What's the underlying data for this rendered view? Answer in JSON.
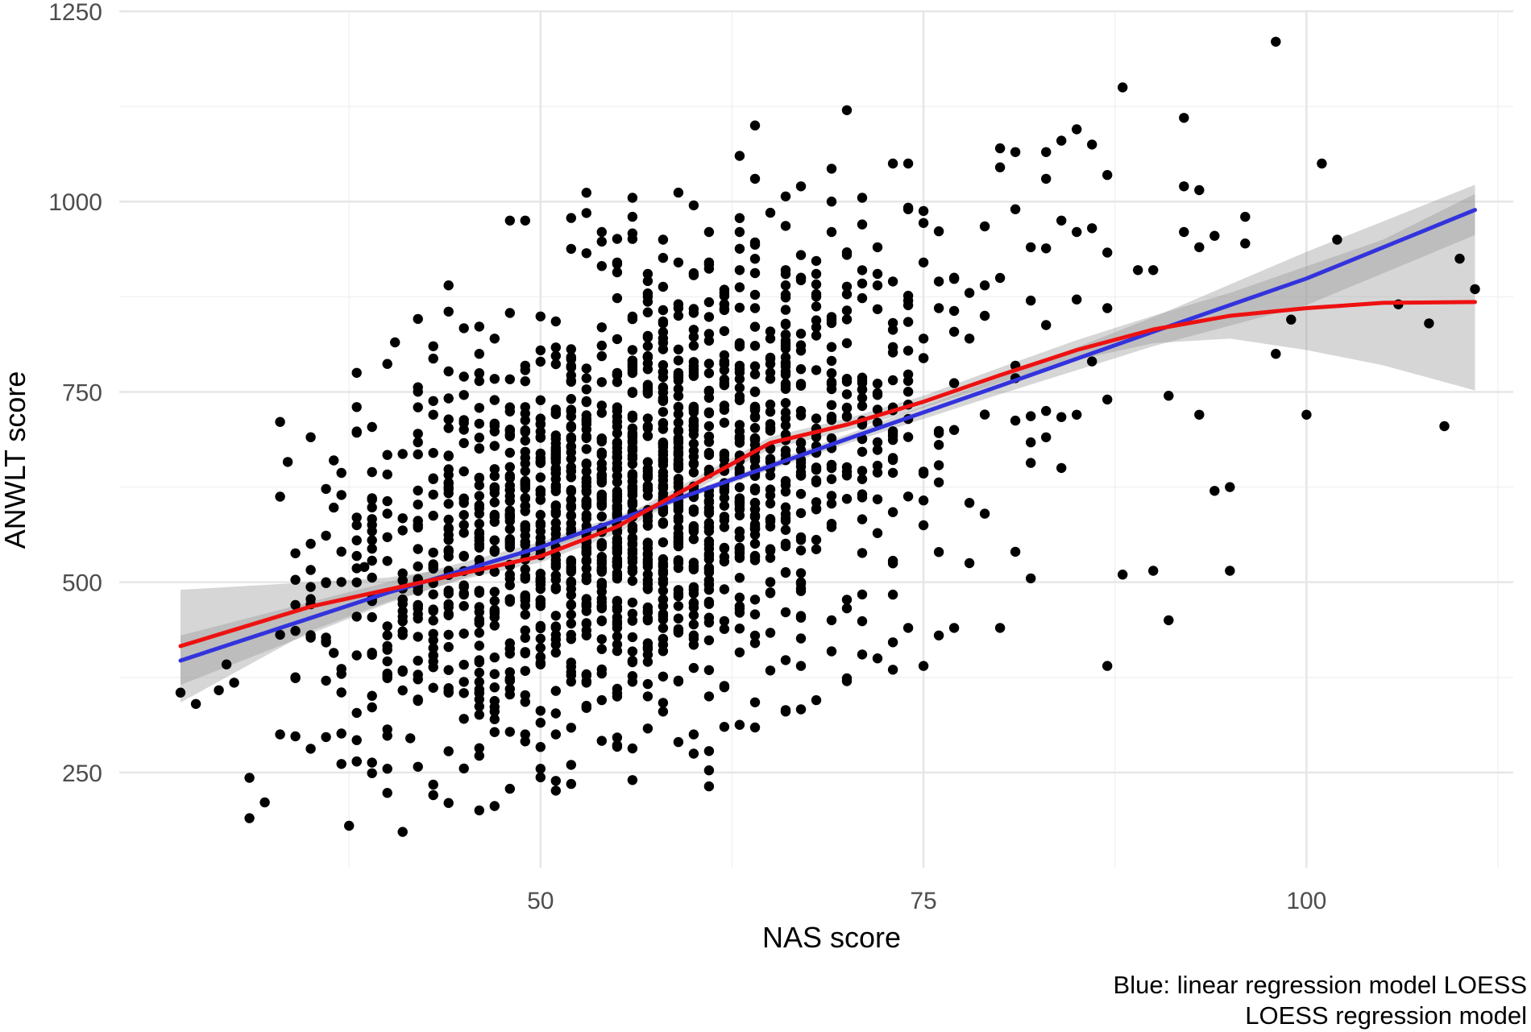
{
  "chart_data": {
    "type": "scatter",
    "title": "",
    "xlabel": "NAS score",
    "ylabel": "ANWLT score",
    "xlim": [
      22.5,
      113.5
    ],
    "ylim": [
      125,
      1250
    ],
    "xticks": [
      50,
      75,
      100
    ],
    "xtick_labels": [
      "50",
      "75",
      "100"
    ],
    "x_minor_gridlines": [
      37.5,
      62.5,
      87.5,
      112.5
    ],
    "yticks": [
      250,
      500,
      750,
      1000,
      1250
    ],
    "ytick_labels": [
      "250",
      "500",
      "750",
      "1000",
      "1250"
    ],
    "y_minor_gridlines": [
      375,
      625,
      875,
      1125
    ],
    "grid": true,
    "legend": "none",
    "caption": [
      "Blue: linear regression model LOESS",
      "LOESS regression model"
    ],
    "colors": {
      "points": "#000000",
      "linear": "#3333dd",
      "loess": "#ee1111",
      "band": "#999999",
      "grid_major": "#e6e6e6",
      "grid_minor": "#f2f2f2"
    },
    "points_count": 1800,
    "points": [
      [
        26.5,
        355
      ],
      [
        27.5,
        340
      ],
      [
        29,
        358
      ],
      [
        29.5,
        392
      ],
      [
        30,
        368
      ],
      [
        31,
        243
      ],
      [
        31,
        190
      ],
      [
        33,
        300
      ],
      [
        33.5,
        658
      ],
      [
        34,
        374
      ],
      [
        34,
        436
      ],
      [
        34,
        470
      ],
      [
        34,
        538
      ],
      [
        35,
        516
      ],
      [
        35,
        471
      ],
      [
        36,
        500
      ],
      [
        36.5,
        407
      ],
      [
        36.5,
        660
      ],
      [
        36.5,
        598
      ],
      [
        37.5,
        180
      ],
      [
        38,
        775
      ],
      [
        38,
        730
      ],
      [
        38,
        698
      ],
      [
        38,
        585
      ],
      [
        38,
        555
      ],
      [
        38.5,
        520
      ],
      [
        39,
        263
      ],
      [
        40,
        255
      ],
      [
        40,
        380
      ],
      [
        40,
        590
      ],
      [
        40.5,
        815
      ],
      [
        41,
        172
      ],
      [
        41.5,
        295
      ],
      [
        42,
        470
      ],
      [
        42,
        695
      ],
      [
        43,
        810
      ],
      [
        43,
        738
      ],
      [
        43,
        720
      ],
      [
        44,
        890
      ],
      [
        44,
        210
      ],
      [
        44,
        485
      ],
      [
        44,
        540
      ],
      [
        45,
        770
      ],
      [
        45,
        610
      ],
      [
        46,
        800
      ],
      [
        46,
        676
      ],
      [
        47,
        820
      ],
      [
        48,
        975
      ],
      [
        49,
        975
      ],
      [
        49,
        730
      ],
      [
        48,
        640
      ],
      [
        48,
        590
      ],
      [
        47,
        540
      ],
      [
        46,
        355
      ],
      [
        47,
        320
      ],
      [
        49,
        300
      ],
      [
        50,
        255
      ],
      [
        51,
        239
      ],
      [
        52,
        260
      ],
      [
        53,
        985
      ],
      [
        54,
        960
      ],
      [
        54,
        345
      ],
      [
        55,
        600
      ],
      [
        55,
        920
      ],
      [
        56,
        1005
      ],
      [
        56,
        980
      ],
      [
        57,
        875
      ],
      [
        57,
        905
      ],
      [
        58,
        888
      ],
      [
        58,
        840
      ],
      [
        58,
        950
      ],
      [
        59,
        920
      ],
      [
        59,
        860
      ],
      [
        60,
        995
      ],
      [
        60,
        780
      ],
      [
        60,
        700
      ],
      [
        61,
        960
      ],
      [
        61,
        920
      ],
      [
        62,
        880
      ],
      [
        62,
        830
      ],
      [
        63,
        960
      ],
      [
        63,
        910
      ],
      [
        63,
        1060
      ],
      [
        64,
        1100
      ],
      [
        64,
        1030
      ],
      [
        64,
        860
      ],
      [
        65,
        795
      ],
      [
        65,
        820
      ],
      [
        66,
        910
      ],
      [
        66,
        890
      ],
      [
        67,
        1020
      ],
      [
        67,
        900
      ],
      [
        68,
        905
      ],
      [
        68,
        875
      ],
      [
        69,
        960
      ],
      [
        69,
        1000
      ],
      [
        70,
        1120
      ],
      [
        70,
        930
      ],
      [
        71,
        1005
      ],
      [
        71,
        970
      ],
      [
        72,
        940
      ],
      [
        72,
        905
      ],
      [
        73,
        895
      ],
      [
        73,
        1050
      ],
      [
        74,
        1050
      ],
      [
        74,
        990
      ],
      [
        75,
        920
      ],
      [
        75,
        820
      ],
      [
        76,
        860
      ],
      [
        76,
        895
      ],
      [
        77,
        900
      ],
      [
        77,
        700
      ],
      [
        78,
        880
      ],
      [
        78,
        820
      ],
      [
        79,
        890
      ],
      [
        79,
        850
      ],
      [
        80,
        1070
      ],
      [
        80,
        1045
      ],
      [
        81,
        1065
      ],
      [
        81,
        990
      ],
      [
        82,
        870
      ],
      [
        82,
        940
      ],
      [
        83,
        1065
      ],
      [
        83,
        1030
      ],
      [
        84,
        1080
      ],
      [
        84,
        975
      ],
      [
        85,
        1095
      ],
      [
        85,
        960
      ],
      [
        86,
        1075
      ],
      [
        86,
        965
      ],
      [
        87,
        1035
      ],
      [
        87,
        860
      ],
      [
        88,
        1150
      ],
      [
        89,
        910
      ],
      [
        90,
        910
      ],
      [
        91,
        450
      ],
      [
        92,
        1110
      ],
      [
        92,
        1020
      ],
      [
        92,
        960
      ],
      [
        93,
        1015
      ],
      [
        93,
        940
      ],
      [
        93,
        720
      ],
      [
        94,
        955
      ],
      [
        94,
        620
      ],
      [
        95,
        625
      ],
      [
        95,
        515
      ],
      [
        96,
        980
      ],
      [
        96,
        945
      ],
      [
        98,
        1210
      ],
      [
        98,
        800
      ],
      [
        99,
        845
      ],
      [
        100,
        720
      ],
      [
        101,
        1050
      ],
      [
        102,
        950
      ],
      [
        106,
        865
      ],
      [
        108,
        840
      ],
      [
        109,
        705
      ],
      [
        110,
        925
      ],
      [
        111,
        885
      ],
      [
        91,
        745
      ],
      [
        90,
        515
      ],
      [
        88,
        510
      ],
      [
        87,
        390
      ],
      [
        87,
        740
      ],
      [
        86,
        790
      ],
      [
        85,
        720
      ],
      [
        84,
        650
      ],
      [
        83,
        725
      ],
      [
        82,
        505
      ],
      [
        81,
        540
      ],
      [
        80,
        440
      ],
      [
        79,
        590
      ],
      [
        78,
        525
      ],
      [
        77,
        440
      ],
      [
        76,
        430
      ],
      [
        75,
        390
      ],
      [
        74,
        440
      ],
      [
        73,
        385
      ],
      [
        72,
        400
      ],
      [
        71,
        405
      ],
      [
        70,
        370
      ],
      [
        69,
        450
      ],
      [
        68,
        345
      ],
      [
        67,
        390
      ],
      [
        66,
        330
      ],
      [
        65,
        500
      ],
      [
        64,
        420
      ],
      [
        63,
        460
      ],
      [
        62,
        310
      ],
      [
        61,
        350
      ],
      [
        60,
        300
      ],
      [
        59,
        290
      ],
      [
        58,
        330
      ],
      [
        57,
        350
      ],
      [
        56,
        240
      ],
      [
        55,
        360
      ],
      [
        54,
        380
      ],
      [
        53,
        430
      ],
      [
        52,
        235
      ],
      [
        51,
        300
      ]
    ],
    "series": [
      {
        "name": "Blue: linear regression model LOESS",
        "x": [
          26.5,
          40,
          50,
          60,
          70,
          80,
          90,
          100,
          111
        ],
        "y": [
          397,
          486,
          546,
          617,
          688,
          758,
          829,
          899,
          989
        ],
        "band_upper": [
          430,
          500,
          553,
          621,
          694,
          769,
          848,
          934,
          1022
        ],
        "band_lower": [
          365,
          472,
          539,
          613,
          682,
          747,
          810,
          864,
          956
        ]
      },
      {
        "name": "LOESS regression model",
        "x": [
          26.5,
          35,
          40,
          45,
          50,
          55,
          60,
          65,
          70,
          75,
          80,
          85,
          90,
          95,
          100,
          105,
          111
        ],
        "y": [
          416,
          468,
          490,
          512,
          534,
          573,
          628,
          683,
          707,
          737,
          772,
          805,
          832,
          850,
          860,
          867,
          868
        ],
        "band_upper": [
          490,
          500,
          506,
          520,
          542,
          582,
          636,
          691,
          715,
          745,
          782,
          818,
          850,
          880,
          915,
          950,
          1010
        ],
        "band_lower": [
          342,
          436,
          474,
          504,
          526,
          564,
          620,
          675,
          699,
          729,
          762,
          792,
          814,
          820,
          805,
          785,
          752
        ]
      }
    ]
  }
}
